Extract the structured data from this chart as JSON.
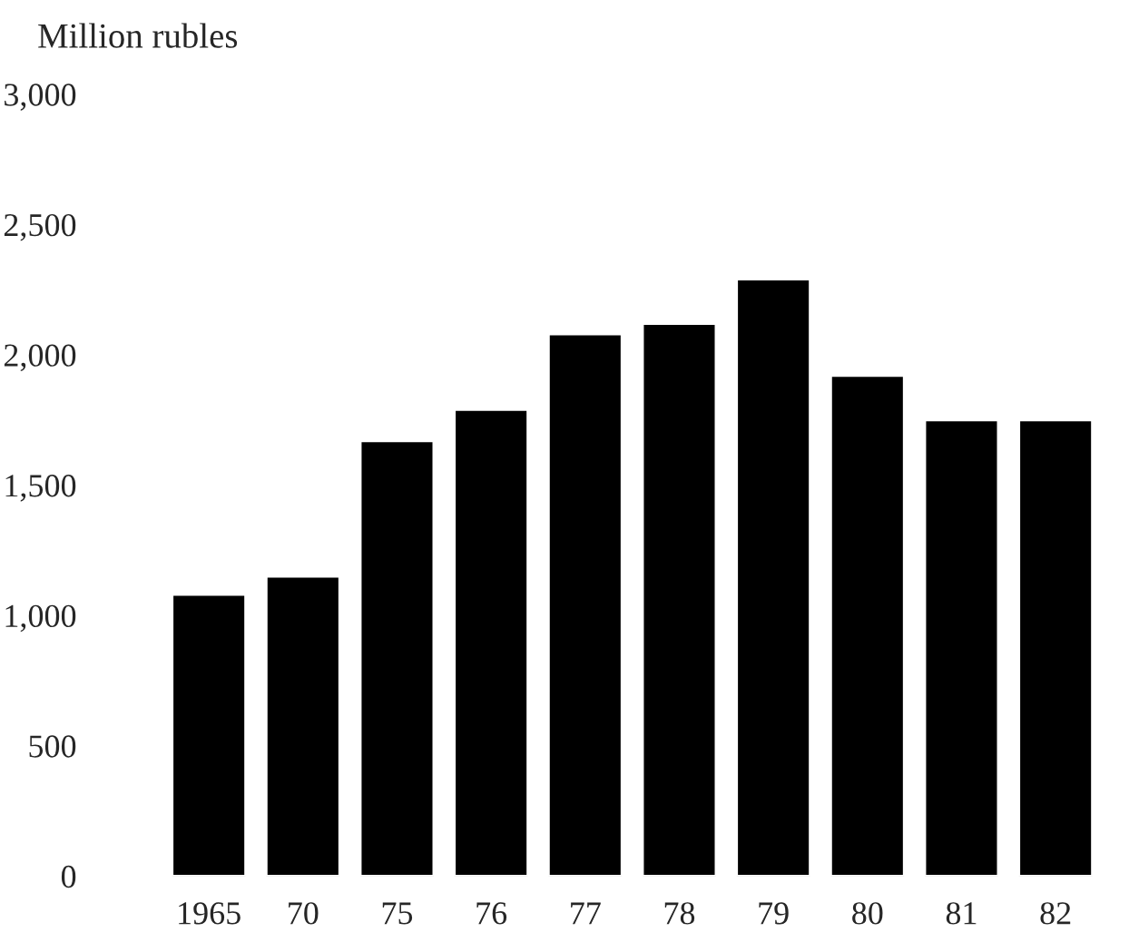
{
  "chart_data": {
    "type": "bar",
    "ylabel": "Million rubles",
    "categories": [
      "1965",
      "70",
      "75",
      "76",
      "77",
      "78",
      "79",
      "80",
      "81",
      "82"
    ],
    "values": [
      1080,
      1150,
      1670,
      1790,
      2080,
      2120,
      2290,
      1920,
      1750,
      1750
    ],
    "color": "#000000",
    "ylim": [
      0,
      3000
    ],
    "yticks": [
      {
        "value": 0,
        "label": "0"
      },
      {
        "value": 500,
        "label": "500"
      },
      {
        "value": 1000,
        "label": "1,000"
      },
      {
        "value": 1500,
        "label": "1,500"
      },
      {
        "value": 2000,
        "label": "2,000"
      },
      {
        "value": 2500,
        "label": "2,500"
      },
      {
        "value": 3000,
        "label": "3,000"
      }
    ],
    "grid": false
  }
}
